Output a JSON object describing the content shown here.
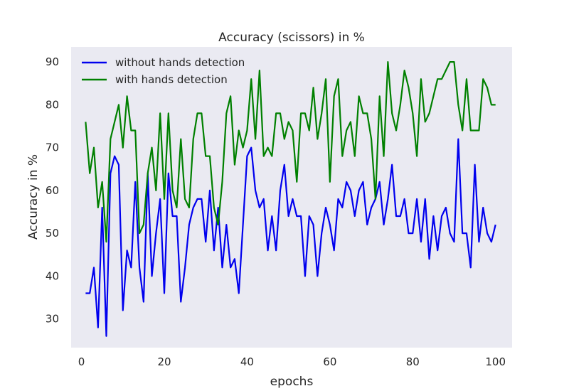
{
  "chart_data": {
    "type": "line",
    "title": "Accuracy (scissors)  in %",
    "xlabel": "epochs",
    "ylabel": "Accuracy in %",
    "xlim": [
      -2.5,
      104
    ],
    "ylim": [
      23.3,
      93.5
    ],
    "xticks": [
      0,
      20,
      40,
      60,
      80,
      100
    ],
    "yticks": [
      30,
      40,
      50,
      60,
      70,
      80,
      90
    ],
    "grid": false,
    "legend": "top-left",
    "background_color": "#eaeaf2",
    "x": [
      1,
      2,
      3,
      4,
      5,
      6,
      7,
      8,
      9,
      10,
      11,
      12,
      13,
      14,
      15,
      16,
      17,
      18,
      19,
      20,
      21,
      22,
      23,
      24,
      25,
      26,
      27,
      28,
      29,
      30,
      31,
      32,
      33,
      34,
      35,
      36,
      37,
      38,
      39,
      40,
      41,
      42,
      43,
      44,
      45,
      46,
      47,
      48,
      49,
      50,
      51,
      52,
      53,
      54,
      55,
      56,
      57,
      58,
      59,
      60,
      61,
      62,
      63,
      64,
      65,
      66,
      67,
      68,
      69,
      70,
      71,
      72,
      73,
      74,
      75,
      76,
      77,
      78,
      79,
      80,
      81,
      82,
      83,
      84,
      85,
      86,
      87,
      88,
      89,
      90,
      91,
      92,
      93,
      94,
      95,
      96,
      97,
      98,
      99,
      100
    ],
    "series": [
      {
        "name": "without hands detection",
        "color": "#0000ee",
        "values": [
          36,
          36,
          42,
          28,
          56,
          26,
          64,
          68,
          66,
          32,
          46,
          42,
          62,
          42,
          34,
          64,
          40,
          50,
          58,
          36,
          64,
          54,
          54,
          34,
          42,
          52,
          56,
          58,
          58,
          48,
          60,
          46,
          56,
          42,
          52,
          42,
          44,
          36,
          52,
          68,
          70,
          60,
          56,
          58,
          46,
          54,
          46,
          60,
          66,
          54,
          58,
          54,
          54,
          40,
          54,
          52,
          40,
          50,
          56,
          52,
          46,
          58,
          56,
          62,
          60,
          54,
          60,
          62,
          52,
          56,
          58,
          62,
          52,
          58,
          66,
          54,
          54,
          58,
          50,
          50,
          58,
          48,
          58,
          44,
          54,
          46,
          54,
          56,
          50,
          48,
          72,
          50,
          50,
          42,
          66,
          48,
          56,
          50,
          48,
          52
        ]
      },
      {
        "name": "with hands detection",
        "color": "#008000",
        "values": [
          76,
          64,
          70,
          56,
          62,
          48,
          72,
          76,
          80,
          70,
          82,
          74,
          74,
          50,
          52,
          64,
          70,
          60,
          78,
          58,
          78,
          60,
          56,
          72,
          58,
          56,
          72,
          78,
          78,
          68,
          68,
          56,
          52,
          62,
          78,
          82,
          66,
          74,
          70,
          74,
          86,
          72,
          88,
          68,
          70,
          68,
          78,
          78,
          72,
          76,
          74,
          62,
          78,
          78,
          74,
          84,
          72,
          78,
          86,
          62,
          82,
          86,
          68,
          74,
          76,
          68,
          82,
          78,
          78,
          72,
          58,
          82,
          68,
          90,
          78,
          74,
          80,
          88,
          84,
          78,
          68,
          86,
          76,
          78,
          82,
          86,
          86,
          88,
          90,
          90,
          80,
          74,
          86,
          74,
          74,
          74,
          86,
          84,
          80,
          80
        ]
      }
    ]
  }
}
